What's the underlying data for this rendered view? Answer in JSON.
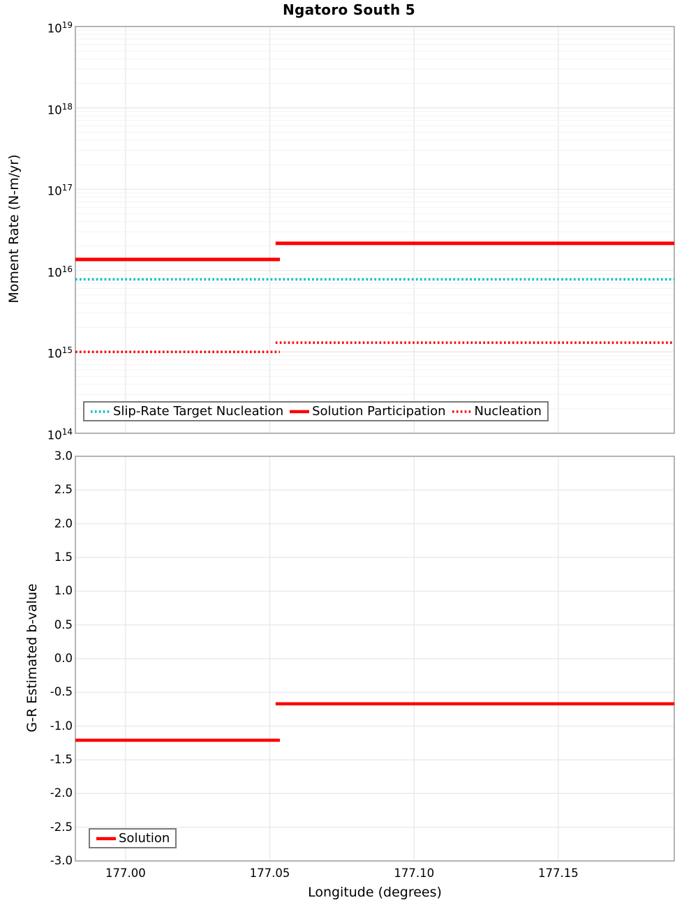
{
  "title": "Ngatoro South 5",
  "xlabel": "Longitude (degrees)",
  "colors": {
    "solution_red": "#ff0000",
    "slip_rate_cyan": "#00bfbf",
    "grid_major": "#e6e6e6",
    "grid_minor": "#f2f2f2",
    "spine": "#acacac",
    "legend_border": "#7a7a7a"
  },
  "x_axis": {
    "range": [
      176.9826,
      177.1902
    ],
    "ticks": [
      {
        "value": 177.0,
        "label": "177.00"
      },
      {
        "value": 177.05,
        "label": "177.05"
      },
      {
        "value": 177.1,
        "label": "177.10"
      },
      {
        "value": 177.15,
        "label": "177.15"
      }
    ]
  },
  "chart_data": [
    {
      "type": "line",
      "id": "moment-rate",
      "ylabel": "Moment Rate (N-m/yr)",
      "yscale": "log",
      "ylim": [
        100000000000000.0,
        1e+19
      ],
      "y_ticks_exponents": [
        19,
        18,
        17,
        16,
        15,
        14
      ],
      "grid": true,
      "legend_position": "lower left",
      "series": [
        {
          "name": "Slip-Rate Target Nucleation",
          "color": "#00bfbf",
          "style": "dotted",
          "width": 3.5,
          "steps": [
            {
              "x_start": 176.9826,
              "x_end": 177.1902,
              "y": 7800000000000000.0
            }
          ]
        },
        {
          "name": "Solution Participation",
          "color": "#ff0000",
          "style": "solid",
          "width": 5,
          "steps": [
            {
              "x_start": 176.9826,
              "x_end": 177.0535,
              "y": 1.37e+16
            },
            {
              "x_start": 177.052,
              "x_end": 177.1902,
              "y": 2.16e+16
            }
          ]
        },
        {
          "name": "Nucleation",
          "color": "#ff0000",
          "style": "dotted",
          "width": 3.5,
          "steps": [
            {
              "x_start": 176.9826,
              "x_end": 177.0535,
              "y": 1000000000000000.0
            },
            {
              "x_start": 177.052,
              "x_end": 177.1902,
              "y": 1300000000000000.0
            }
          ]
        }
      ]
    },
    {
      "type": "line",
      "id": "b-value",
      "ylabel": "G-R Estimated b-value",
      "yscale": "linear",
      "ylim": [
        -3.0,
        3.0
      ],
      "y_tick_labels": [
        "3.0",
        "2.5",
        "2.0",
        "1.5",
        "1.0",
        "0.5",
        "0.0",
        "-0.5",
        "-1.0",
        "-1.5",
        "-2.0",
        "-2.5",
        "-3.0"
      ],
      "grid": true,
      "legend_position": "lower left",
      "series": [
        {
          "name": "Solution",
          "color": "#ff0000",
          "style": "solid",
          "width": 4.5,
          "steps": [
            {
              "x_start": 176.9826,
              "x_end": 177.0535,
              "y": -1.21
            },
            {
              "x_start": 177.052,
              "x_end": 177.1902,
              "y": -0.67
            }
          ]
        }
      ]
    }
  ]
}
